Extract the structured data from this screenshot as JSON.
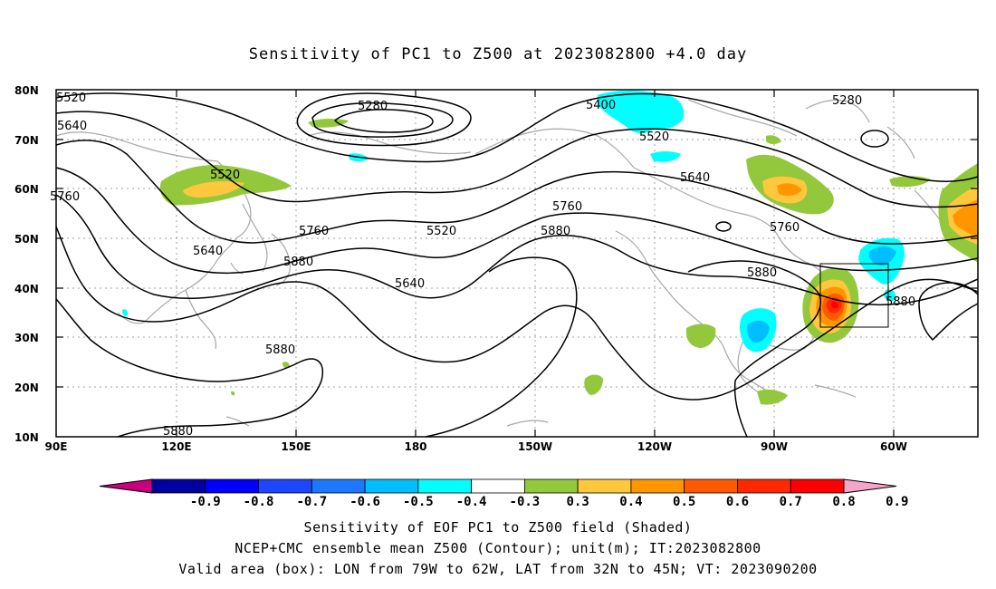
{
  "title": "Sensitivity of PC1 to Z500 at 2023082800 +4.0 day",
  "lat_ticks": [
    "80N",
    "70N",
    "60N",
    "50N",
    "40N",
    "30N",
    "20N",
    "10N"
  ],
  "lon_ticks": [
    "90E",
    "120E",
    "150E",
    "180",
    "150W",
    "120W",
    "90W",
    "60W"
  ],
  "contour_labels": [
    "5520",
    "5640",
    "5760",
    "5280",
    "5520",
    "5640",
    "5760",
    "5880",
    "5520",
    "5640",
    "5880",
    "5880",
    "5400",
    "5520",
    "5640",
    "5760",
    "5880",
    "5880",
    "5280",
    "5760",
    "5880"
  ],
  "colorbar": {
    "ticks": [
      "-0.9",
      "-0.8",
      "-0.7",
      "-0.6",
      "-0.5",
      "-0.4",
      "-0.3",
      "0.3",
      "0.4",
      "0.5",
      "0.6",
      "0.7",
      "0.8",
      "0.9"
    ],
    "colors": [
      "#c8007f",
      "#0000a0",
      "#0000ff",
      "#1e46ff",
      "#1e78ff",
      "#00beff",
      "#00ffff",
      "#ffffff",
      "#94c83c",
      "#ffc83c",
      "#ff9600",
      "#ff5a00",
      "#ff2800",
      "#ff0000",
      "#f5a5c8"
    ]
  },
  "captions": [
    "Sensitivity of EOF PC1 to Z500 field (Shaded)",
    "NCEP+CMC ensemble mean Z500 (Contour); unit(m); IT:2023082800",
    "Valid area (box): LON from 79W to 62W, LAT from 32N to 45N; VT: 2023090200"
  ]
}
